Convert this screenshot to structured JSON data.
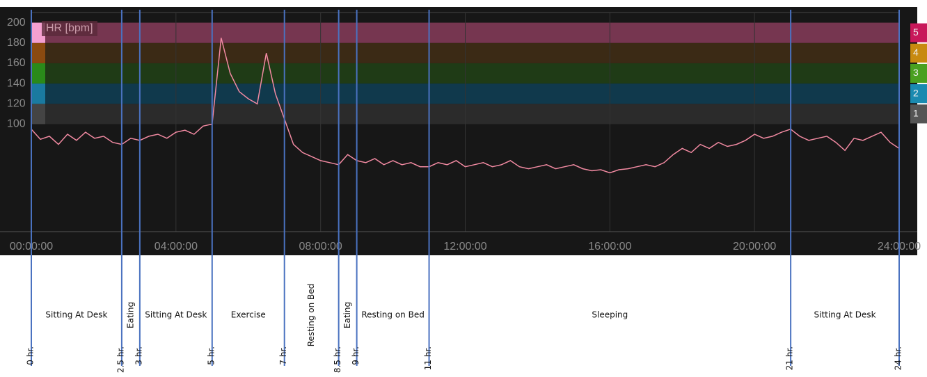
{
  "chart_data": {
    "type": "line",
    "x": [
      0,
      0.25,
      0.5,
      0.75,
      1,
      1.25,
      1.5,
      1.75,
      2,
      2.25,
      2.5,
      2.75,
      3,
      3.25,
      3.5,
      3.75,
      4,
      4.25,
      4.5,
      4.75,
      5,
      5.25,
      5.5,
      5.75,
      6,
      6.25,
      6.5,
      6.75,
      7,
      7.25,
      7.5,
      7.75,
      8,
      8.25,
      8.5,
      8.75,
      9,
      9.25,
      9.5,
      9.75,
      10,
      10.25,
      10.5,
      10.75,
      11,
      11.25,
      11.5,
      11.75,
      12,
      12.25,
      12.5,
      12.75,
      13,
      13.25,
      13.5,
      13.75,
      14,
      14.25,
      14.5,
      14.75,
      15,
      15.25,
      15.5,
      15.75,
      16,
      16.25,
      16.5,
      16.75,
      17,
      17.25,
      17.5,
      17.75,
      18,
      18.25,
      18.5,
      18.75,
      19,
      19.25,
      19.5,
      19.75,
      20,
      20.25,
      20.5,
      20.75,
      21,
      21.25,
      21.5,
      21.75,
      22,
      22.25,
      22.5,
      22.75,
      23,
      23.25,
      23.5,
      23.75,
      24
    ],
    "series": [
      {
        "name": "HR [bpm]",
        "color": "#f28aa2",
        "values": [
          95,
          85,
          88,
          80,
          90,
          84,
          92,
          86,
          88,
          82,
          80,
          86,
          84,
          88,
          90,
          86,
          92,
          94,
          90,
          98,
          100,
          185,
          150,
          132,
          125,
          120,
          170,
          130,
          105,
          80,
          72,
          68,
          64,
          62,
          60,
          70,
          64,
          62,
          66,
          60,
          64,
          60,
          62,
          58,
          58,
          62,
          60,
          64,
          58,
          60,
          62,
          58,
          60,
          64,
          58,
          56,
          58,
          60,
          56,
          58,
          60,
          56,
          54,
          55,
          52,
          55,
          56,
          58,
          60,
          58,
          62,
          70,
          76,
          72,
          80,
          76,
          82,
          78,
          80,
          84,
          90,
          86,
          88,
          92,
          95,
          88,
          84,
          86,
          88,
          82,
          74,
          86,
          84,
          88,
          92,
          82,
          76
        ]
      }
    ],
    "xlim": [
      0,
      24
    ],
    "xticks": [
      {
        "value": 0,
        "label": "00:00:00"
      },
      {
        "value": 4,
        "label": "04:00:00"
      },
      {
        "value": 8,
        "label": "08:00:00"
      },
      {
        "value": 12,
        "label": "12:00:00"
      },
      {
        "value": 16,
        "label": "16:00:00"
      },
      {
        "value": 20,
        "label": "20:00:00"
      },
      {
        "value": 24,
        "label": "24:00:00"
      }
    ],
    "ylim": [
      -6,
      210
    ],
    "yticks": [
      100,
      120,
      140,
      160,
      180,
      200
    ],
    "grid": true,
    "zones": [
      {
        "from": 100,
        "to": 120,
        "color": "#2b2b2b",
        "strip": "#444444",
        "tag": "#555555",
        "label": "1"
      },
      {
        "from": 120,
        "to": 140,
        "color": "#10394c",
        "strip": "#1a7aa0",
        "tag": "#1a8ab0",
        "label": "2"
      },
      {
        "from": 140,
        "to": 160,
        "color": "#1f3b16",
        "strip": "#2a8a1a",
        "tag": "#4aa020",
        "label": "3"
      },
      {
        "from": 160,
        "to": 180,
        "color": "#3b2a15",
        "strip": "#8a4a10",
        "tag": "#c88a10",
        "label": "4"
      },
      {
        "from": 180,
        "to": 200,
        "color": "#763650",
        "strip": "#f4a0d0",
        "tag": "#c8185a",
        "label": "5"
      }
    ],
    "markers": [
      {
        "x": 0,
        "label": "0 hr."
      },
      {
        "x": 2.5,
        "label": "2.5 hr."
      },
      {
        "x": 3,
        "label": "3 hr."
      },
      {
        "x": 5,
        "label": "5 hr."
      },
      {
        "x": 7,
        "label": "7 hr."
      },
      {
        "x": 8.5,
        "label": "8.5 hr."
      },
      {
        "x": 9,
        "label": "9 hr."
      },
      {
        "x": 11,
        "label": "11 hr."
      },
      {
        "x": 21,
        "label": "21 hr."
      },
      {
        "x": 24,
        "label": "24 hr."
      }
    ],
    "segments": [
      {
        "label": "Sitting At Desk",
        "from": 0,
        "to": 2.5
      },
      {
        "label": "Eating",
        "from": 2.5,
        "to": 3
      },
      {
        "label": "Sitting At Desk",
        "from": 3,
        "to": 5
      },
      {
        "label": "Exercise",
        "from": 5,
        "to": 7
      },
      {
        "label": "Resting on Bed",
        "from": 7,
        "to": 8.5
      },
      {
        "label": "Eating",
        "from": 8.5,
        "to": 9
      },
      {
        "label": "Resting on Bed",
        "from": 9,
        "to": 11
      },
      {
        "label": "Sleeping",
        "from": 11,
        "to": 21
      },
      {
        "label": "Sitting At Desk",
        "from": 21,
        "to": 24
      }
    ]
  }
}
